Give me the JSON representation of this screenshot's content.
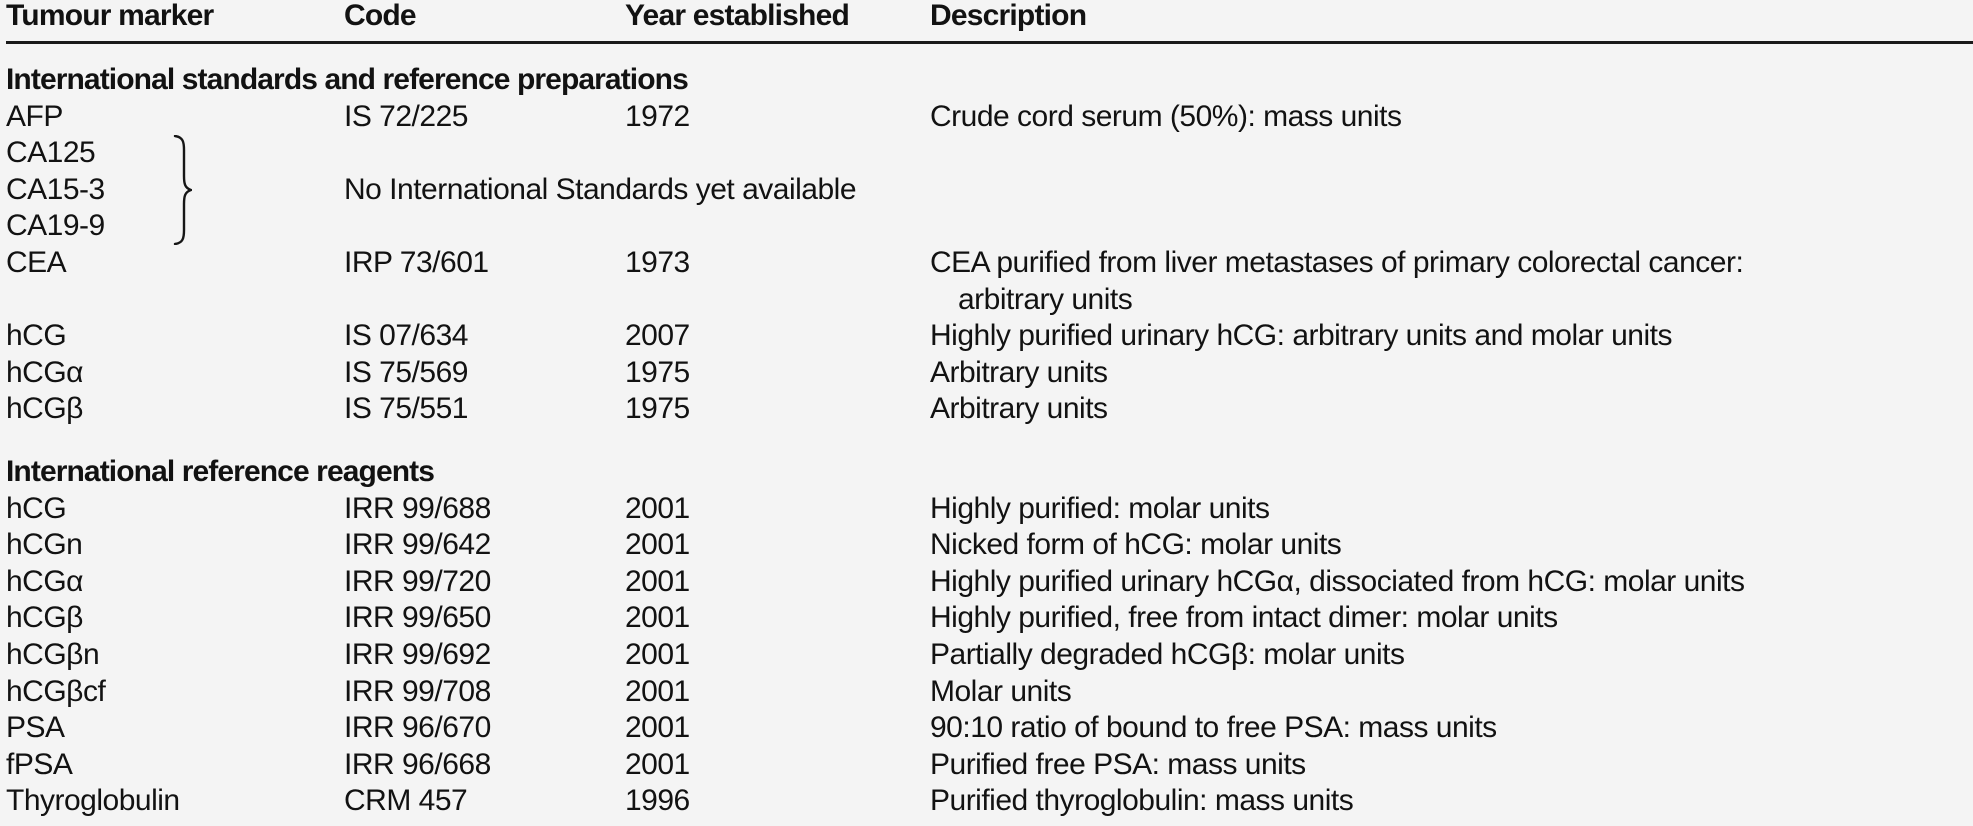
{
  "page": {
    "background_color": "#f4f4f4",
    "text_color": "#121212",
    "rule_color": "#1a1a1a"
  },
  "header": {
    "columns": [
      "Tumour marker",
      "Code",
      "Year established",
      "Description"
    ]
  },
  "sections": [
    {
      "title": "International standards and reference preparations",
      "rows": [
        {
          "marker": "AFP",
          "code": "IS 72/225",
          "year": "1972",
          "description": [
            "Crude cord serum (50%): mass units"
          ]
        },
        {
          "type": "bracket-group",
          "markers": [
            "CA125",
            "CA15-3",
            "CA19-9"
          ],
          "note": "No International Standards yet available"
        },
        {
          "marker": "CEA",
          "code": "IRP 73/601",
          "year": "1973",
          "description": [
            "CEA purified from liver metastases of primary colorectal cancer:",
            "arbitrary units"
          ]
        },
        {
          "marker": "hCG",
          "code": "IS 07/634",
          "year": "2007",
          "description": [
            "Highly purified urinary hCG: arbitrary units and molar units"
          ]
        },
        {
          "marker": "hCGα",
          "code": "IS 75/569",
          "year": "1975",
          "description": [
            "Arbitrary units"
          ]
        },
        {
          "marker": "hCGβ",
          "code": "IS 75/551",
          "year": "1975",
          "description": [
            "Arbitrary units"
          ]
        }
      ]
    },
    {
      "title": "International reference reagents",
      "rows": [
        {
          "marker": "hCG",
          "code": "IRR 99/688",
          "year": "2001",
          "description": [
            "Highly purified: molar units"
          ]
        },
        {
          "marker": "hCGn",
          "code": "IRR 99/642",
          "year": "2001",
          "description": [
            "Nicked form of hCG: molar units"
          ]
        },
        {
          "marker": "hCGα",
          "code": "IRR 99/720",
          "year": "2001",
          "description": [
            "Highly purified urinary hCGα, dissociated from hCG: molar units"
          ]
        },
        {
          "marker": "hCGβ",
          "code": "IRR 99/650",
          "year": "2001",
          "description": [
            "Highly purified, free from intact dimer: molar units"
          ]
        },
        {
          "marker": "hCGβn",
          "code": "IRR 99/692",
          "year": "2001",
          "description": [
            "Partially degraded hCGβ: molar units"
          ]
        },
        {
          "marker": "hCGβcf",
          "code": "IRR 99/708",
          "year": "2001",
          "description": [
            "Molar units"
          ]
        },
        {
          "marker": "PSA",
          "code": "IRR 96/670",
          "year": "2001",
          "description": [
            "90:10 ratio of bound to free PSA: mass units"
          ]
        },
        {
          "marker": "fPSA",
          "code": "IRR 96/668",
          "year": "2001",
          "description": [
            "Purified free PSA: mass units"
          ]
        },
        {
          "marker": "Thyroglobulin",
          "code": "CRM 457",
          "year": "1996",
          "description": [
            "Purified thyroglobulin: mass units"
          ]
        }
      ]
    }
  ]
}
